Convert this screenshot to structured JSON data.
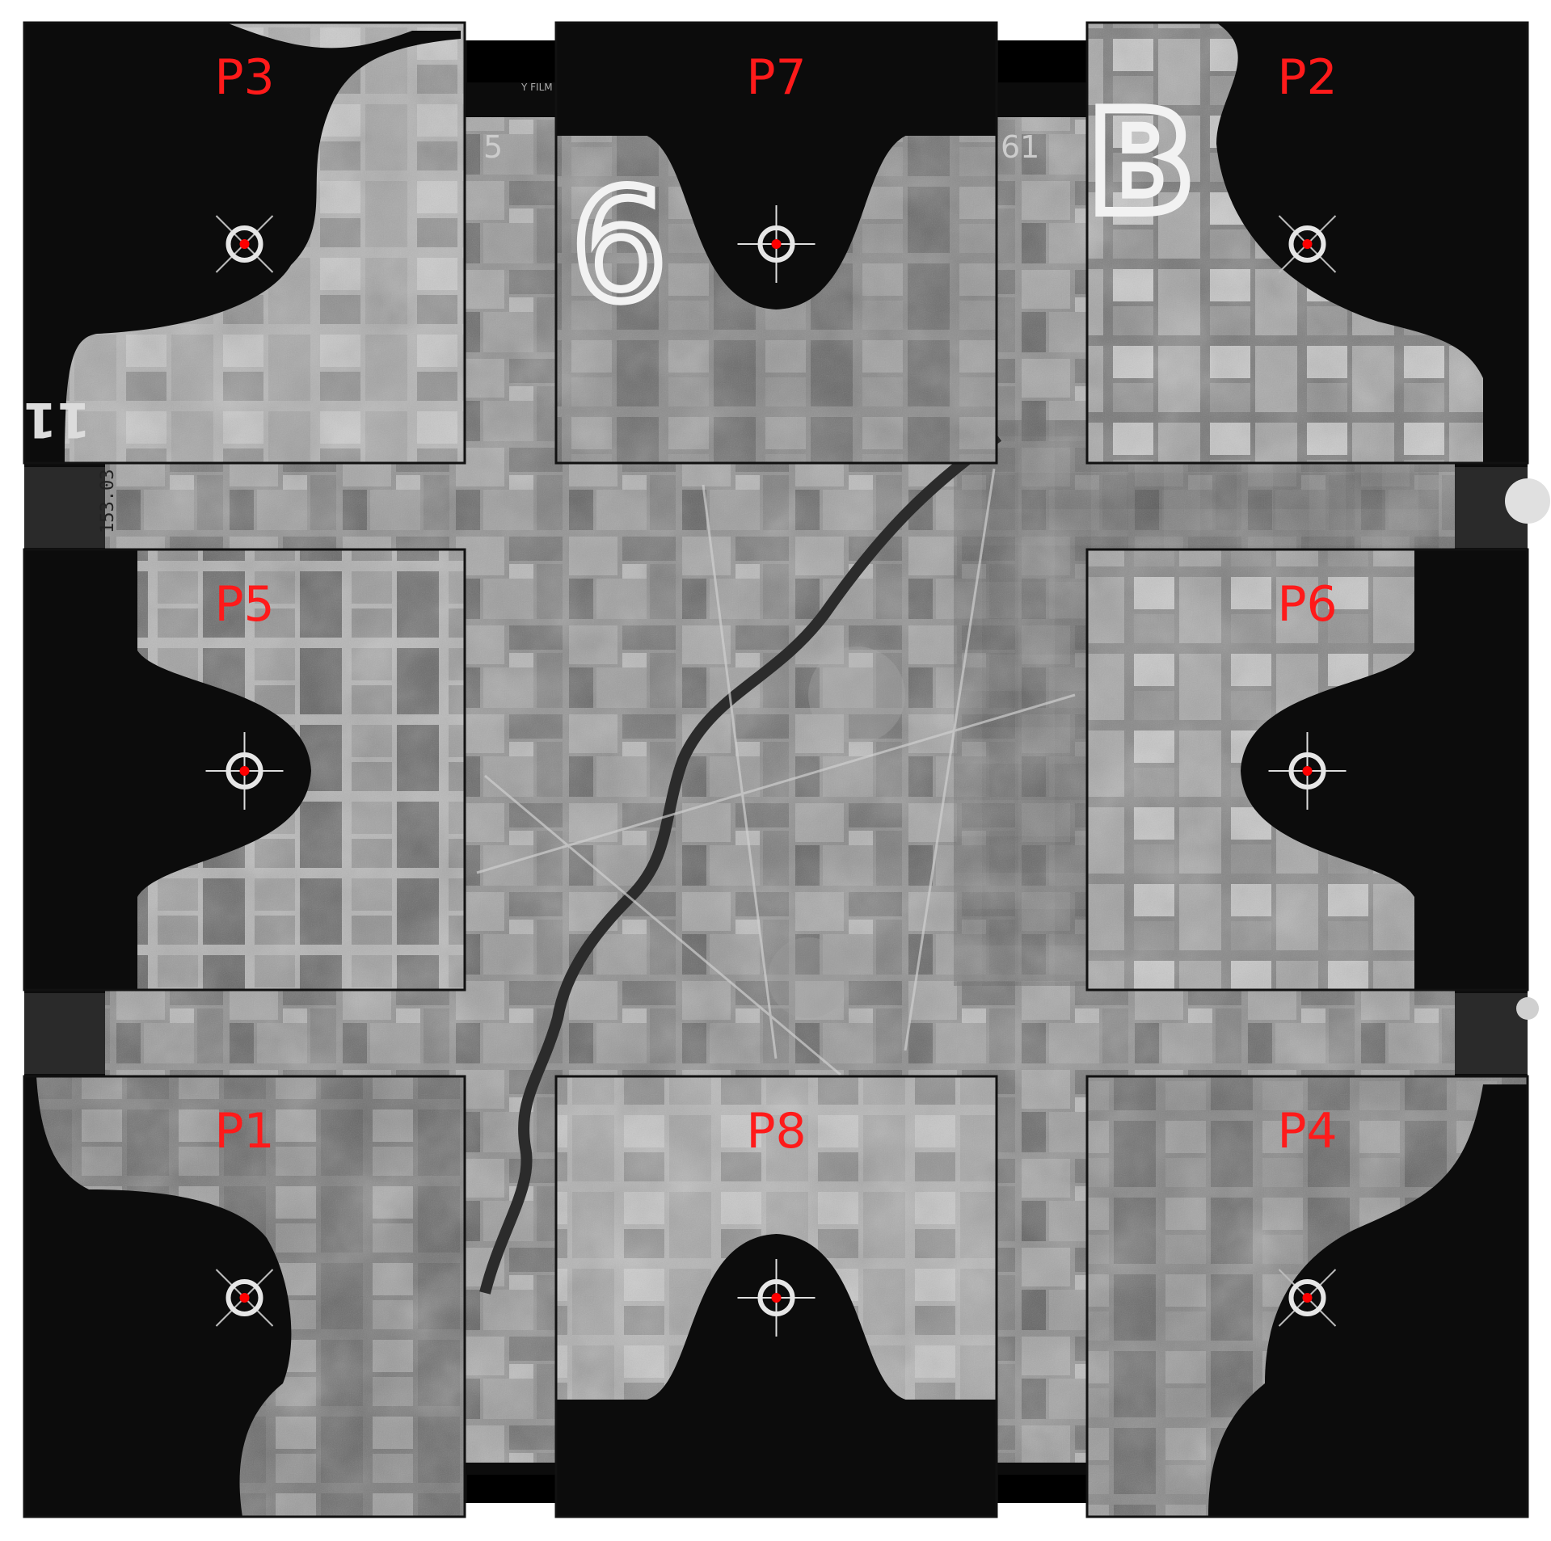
{
  "frame": {
    "frame_number": "153.03",
    "film_text": "Y FILM",
    "edge_marks": [
      "5",
      "61"
    ],
    "fiducial_markings": {
      "top_left": "6",
      "top_right": "B",
      "left_edge": "11"
    }
  },
  "colors": {
    "label": "#ff1a1a",
    "fiducial_dot": "#ff0000",
    "panel_border": "#111111",
    "frame_black": "#0c0c0c"
  },
  "panels": [
    {
      "id": "P3",
      "label": "P3"
    },
    {
      "id": "P7",
      "label": "P7"
    },
    {
      "id": "P2",
      "label": "P2"
    },
    {
      "id": "P5",
      "label": "P5"
    },
    {
      "id": "P6",
      "label": "P6"
    },
    {
      "id": "P1",
      "label": "P1"
    },
    {
      "id": "P8",
      "label": "P8"
    },
    {
      "id": "P4",
      "label": "P4"
    }
  ]
}
